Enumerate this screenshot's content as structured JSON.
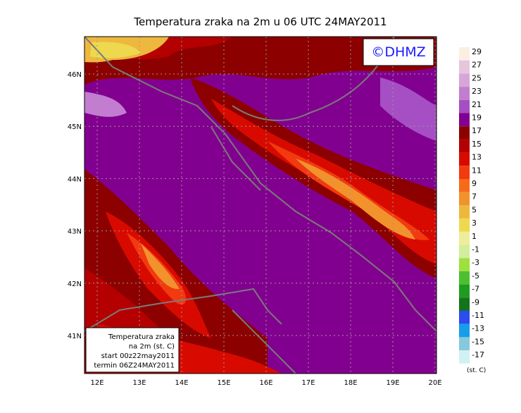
{
  "title": "Temperatura zraka na 2m u 06 UTC 24MAY2011",
  "logo": "©DHMZ",
  "lat_labels": [
    "46N",
    "45N",
    "44N",
    "43N",
    "42N",
    "41N"
  ],
  "lon_labels": [
    "12E",
    "13E",
    "14E",
    "15E",
    "16E",
    "17E",
    "18E",
    "19E",
    "20E"
  ],
  "colorbar": {
    "labels": [
      "29",
      "27",
      "25",
      "23",
      "21",
      "19",
      "17",
      "15",
      "13",
      "11",
      "9",
      "7",
      "5",
      "3",
      "1",
      "-1",
      "-3",
      "-5",
      "-7",
      "-9",
      "-11",
      "-13",
      "-15",
      "-17"
    ],
    "colors": [
      "#fcefe2",
      "#e6c6dd",
      "#d8a6d6",
      "#c27dd0",
      "#a64fc4",
      "#82008f",
      "#8c0000",
      "#b40000",
      "#d80a00",
      "#f23a10",
      "#f76a1a",
      "#f2922c",
      "#eeb83e",
      "#eed94e",
      "#eeee9a",
      "#d2ee9c",
      "#9ee03e",
      "#4ec030",
      "#1f9c20",
      "#12741c",
      "#2a4cf0",
      "#169ee8",
      "#88c8dc",
      "#d0f2f2"
    ],
    "unit": "(st. C)"
  },
  "info_box": [
    "Temperatura zraka",
    "na 2m (st. C)",
    "start 00z22may2011",
    "termin 06Z24MAY2011"
  ]
}
